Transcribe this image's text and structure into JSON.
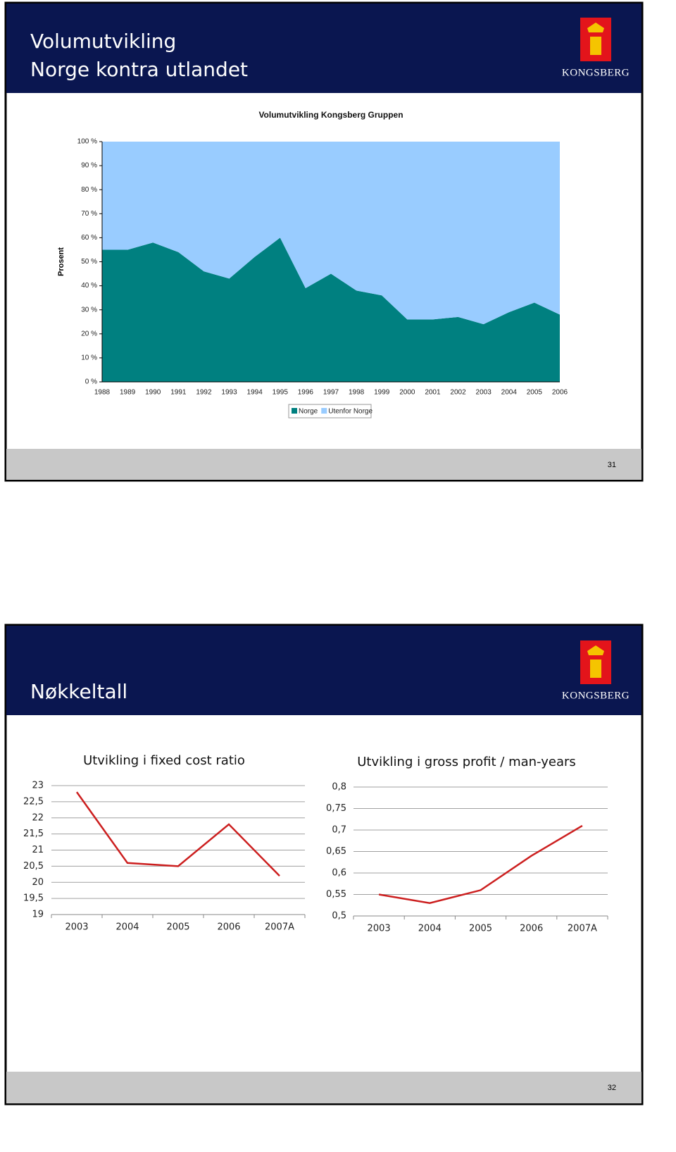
{
  "slides": [
    {
      "title": [
        "Volumutvikling",
        "Norge kontra utlandet"
      ],
      "logo": "KONGSBERG",
      "page": "31"
    },
    {
      "title": [
        "Nøkkeltall"
      ],
      "logo": "KONGSBERG",
      "page": "32"
    }
  ],
  "chart_data": [
    {
      "type": "area",
      "stacked": true,
      "title": "Volumutvikling Kongsberg Gruppen",
      "ylabel": "Prosent",
      "categories": [
        "1988",
        "1989",
        "1990",
        "1991",
        "1992",
        "1993",
        "1994",
        "1995",
        "1996",
        "1997",
        "1998",
        "1999",
        "2000",
        "2001",
        "2002",
        "2003",
        "2004",
        "2005",
        "2006"
      ],
      "series": [
        {
          "name": "Norge",
          "color": "#008080",
          "values": [
            55,
            55,
            58,
            54,
            46,
            43,
            52,
            60,
            39,
            45,
            38,
            36,
            26,
            26,
            27,
            24,
            29,
            33,
            28
          ]
        },
        {
          "name": "Utenfor Norge",
          "color": "#99ccff",
          "values": [
            45,
            45,
            42,
            46,
            54,
            57,
            48,
            40,
            61,
            55,
            62,
            64,
            74,
            74,
            73,
            76,
            71,
            67,
            72
          ]
        }
      ],
      "ylim": [
        0,
        100
      ],
      "yticks": [
        {
          "value": 0,
          "label": "0 %"
        },
        {
          "value": 10,
          "label": "10 %"
        },
        {
          "value": 20,
          "label": "20 %"
        },
        {
          "value": 30,
          "label": "30 %"
        },
        {
          "value": 40,
          "label": "40 %"
        },
        {
          "value": 50,
          "label": "50 %"
        },
        {
          "value": 60,
          "label": "60 %"
        },
        {
          "value": 70,
          "label": "70 %"
        },
        {
          "value": 80,
          "label": "80 %"
        },
        {
          "value": 90,
          "label": "90 %"
        },
        {
          "value": 100,
          "label": "100 %"
        }
      ],
      "grid": false,
      "legend": "bottom"
    },
    {
      "type": "line",
      "title": "Utvikling i fixed cost ratio",
      "categories": [
        "2003",
        "2004",
        "2005",
        "2006",
        "2007A"
      ],
      "values": [
        22.8,
        20.6,
        20.5,
        21.8,
        20.2
      ],
      "color": "#cc1f1f",
      "ylim": [
        19,
        23
      ],
      "yticks": [
        19,
        {
          "value": 19.5,
          "label": "19,5"
        },
        20,
        {
          "value": 20.5,
          "label": "20,5"
        },
        21,
        {
          "value": 21.5,
          "label": "21,5"
        },
        22,
        {
          "value": 22.5,
          "label": "22,5"
        },
        23
      ],
      "grid": true
    },
    {
      "type": "line",
      "title": "Utvikling i gross profit / man-years",
      "categories": [
        "2003",
        "2004",
        "2005",
        "2006",
        "2007A"
      ],
      "values": [
        0.55,
        0.53,
        0.56,
        0.64,
        0.71
      ],
      "color": "#cc1f1f",
      "ylim": [
        0.5,
        0.8
      ],
      "yticks": [
        {
          "value": 0.5,
          "label": "0,5"
        },
        {
          "value": 0.55,
          "label": "0,55"
        },
        {
          "value": 0.6,
          "label": "0,6"
        },
        {
          "value": 0.65,
          "label": "0,65"
        },
        {
          "value": 0.7,
          "label": "0,7"
        },
        {
          "value": 0.75,
          "label": "0,75"
        },
        {
          "value": 0.8,
          "label": "0,8"
        }
      ],
      "grid": true
    }
  ]
}
